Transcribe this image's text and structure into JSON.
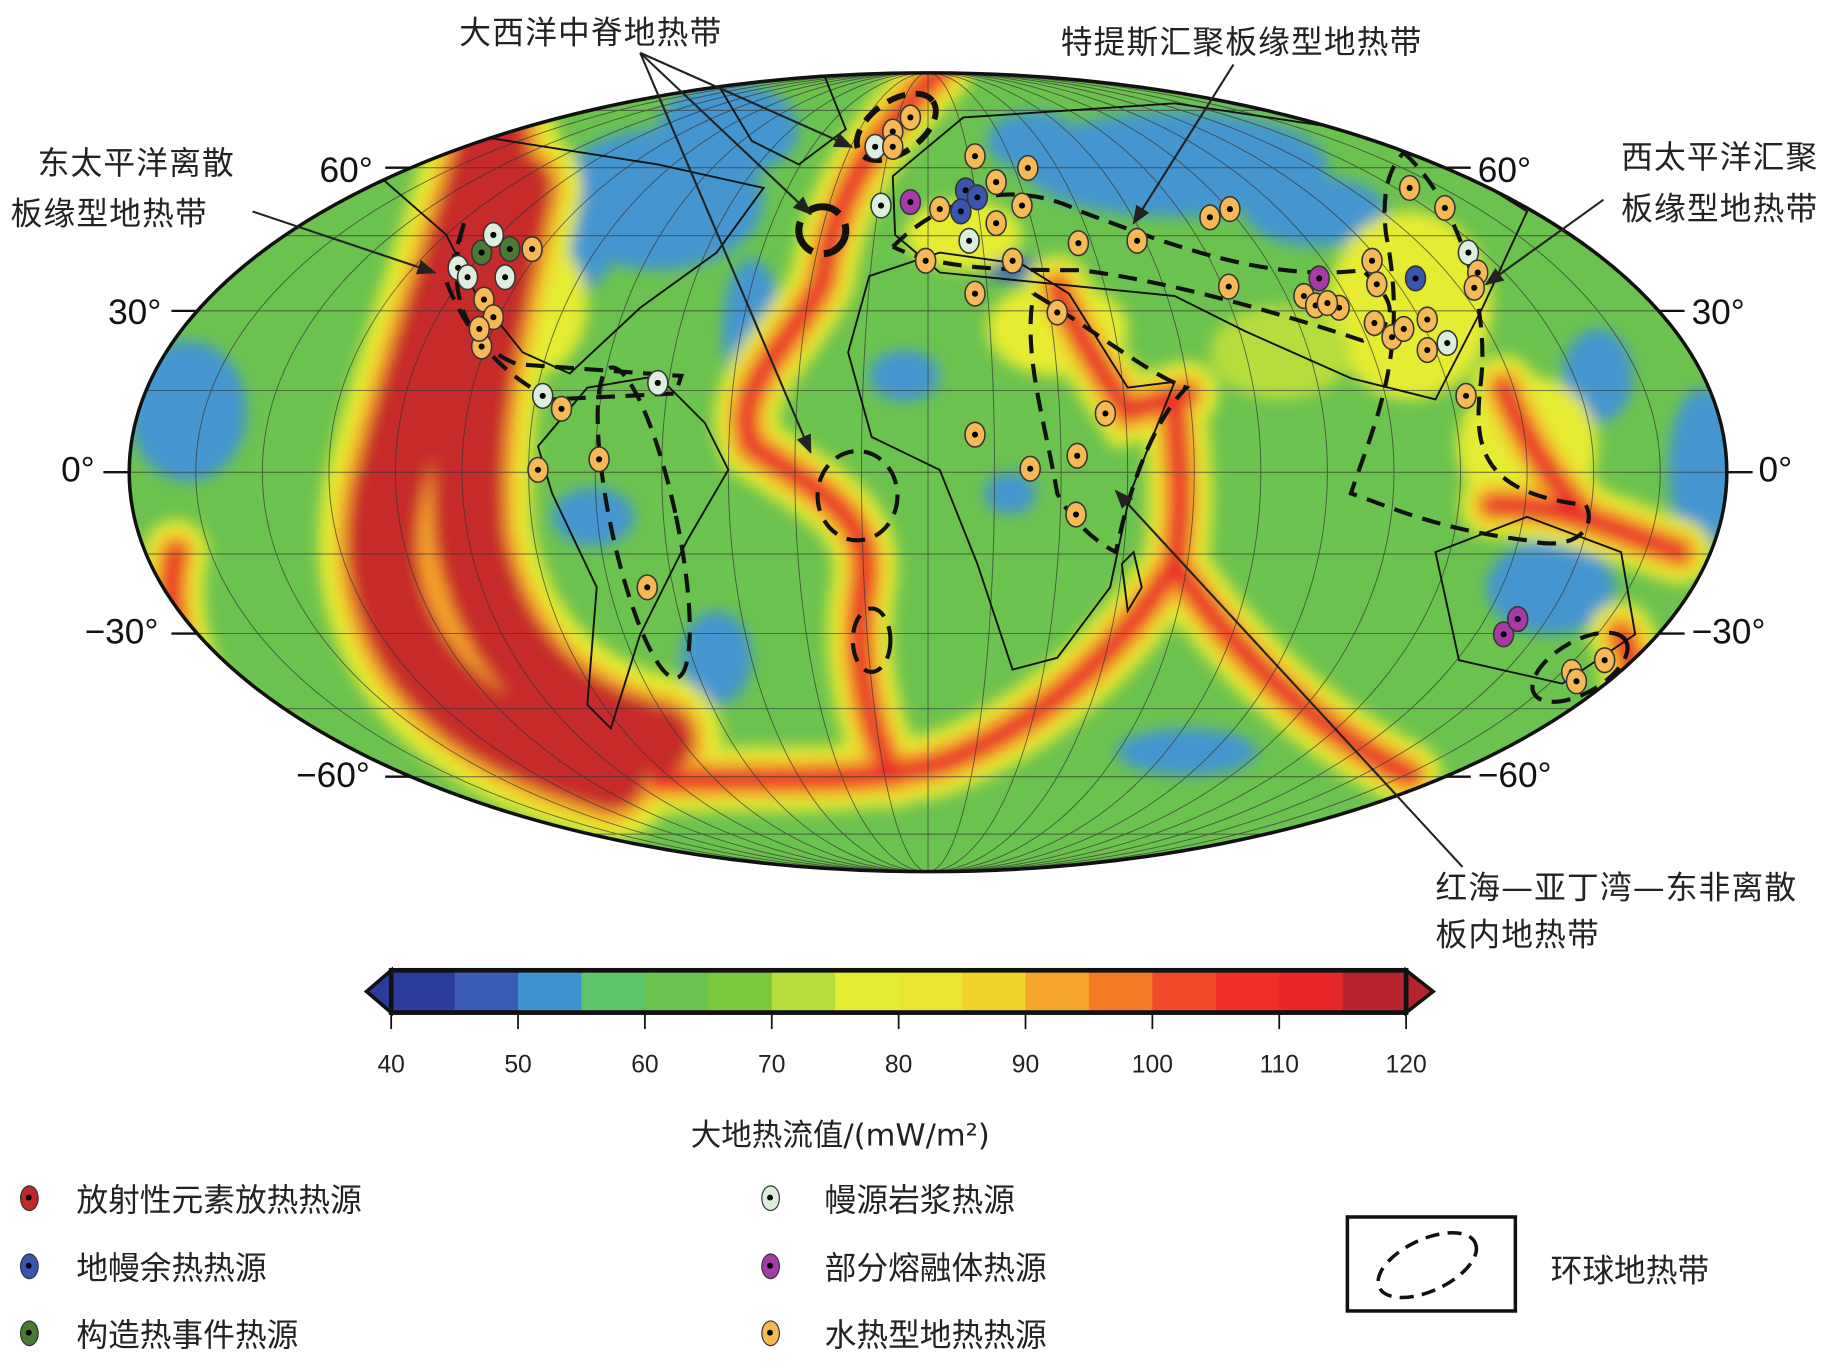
{
  "annotations": {
    "mid_atlantic": "大西洋中脊地热带",
    "tethys": "特提斯汇聚板缘型地热带",
    "east_pacific_line1": "东太平洋离散",
    "east_pacific_line2": "板缘型地热带",
    "west_pacific_line1": "西太平洋汇聚",
    "west_pacific_line2": "板缘型地热带",
    "red_sea_line1": "红海—亚丁湾—东非离散",
    "red_sea_line2": "板内地热带"
  },
  "latitude_labels": {
    "n60": "60°",
    "n30": "30°",
    "eq": "0°",
    "s30": "−30°",
    "s60": "−60°"
  },
  "colorbar": {
    "title": "大地热流值/(mW/m²)",
    "ticks": [
      "40",
      "50",
      "60",
      "70",
      "80",
      "90",
      "100",
      "110",
      "120"
    ],
    "min": 40,
    "max": 120,
    "step": 5,
    "colors": [
      "#2b3b9e",
      "#3a5cb8",
      "#3f94cf",
      "#5ec46b",
      "#6cc24e",
      "#7dc83a",
      "#b5dd3e",
      "#e6ec30",
      "#ece72e",
      "#f0d42a",
      "#f5a52a",
      "#f47a26",
      "#f04a28",
      "#ee3026",
      "#e82828",
      "#b8242e"
    ],
    "extend": "both"
  },
  "legend": {
    "items": [
      {
        "label": "放射性元素放热热源",
        "color": "#c0282c"
      },
      {
        "label": "地幔余热热源",
        "color": "#3a55b0"
      },
      {
        "label": "构造热事件热源",
        "color": "#4a7a34"
      },
      {
        "label": "幔源岩浆热源",
        "color": "#dcefdc"
      },
      {
        "label": "部分熔融体热源",
        "color": "#a83aa8"
      },
      {
        "label": "水热型地热热源",
        "color": "#f5b955"
      }
    ],
    "belt_label": "环球地热带"
  }
}
